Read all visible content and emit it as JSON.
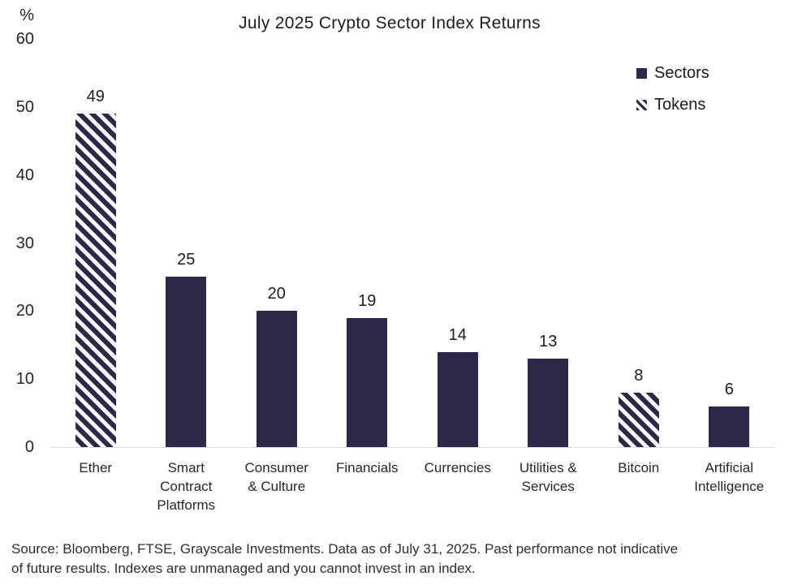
{
  "title": "July 2025 Crypto Sector Index Returns",
  "y_axis": {
    "unit_label": "%",
    "ticks": [
      0,
      10,
      20,
      30,
      40,
      50,
      60
    ]
  },
  "legend": {
    "items": [
      {
        "label": "Sectors",
        "style": "solid"
      },
      {
        "label": "Tokens",
        "style": "hatched"
      }
    ]
  },
  "chart_data": {
    "type": "bar",
    "title": "July 2025 Crypto Sector Index Returns",
    "categories": [
      "Ether",
      "Smart\nContract\nPlatforms",
      "Consumer\n& Culture",
      "Financials",
      "Currencies",
      "Utilities &\nServices",
      "Bitcoin",
      "Artificial\nIntelligence"
    ],
    "values": [
      49,
      25,
      20,
      19,
      14,
      13,
      8,
      6
    ],
    "data_labels": [
      "49",
      "25",
      "20",
      "19",
      "14",
      "13",
      "8",
      "6"
    ],
    "bar_styles": [
      "hatched",
      "solid",
      "solid",
      "solid",
      "solid",
      "solid",
      "hatched",
      "solid"
    ],
    "series_mapping": [
      {
        "category": "Ether",
        "series": "Tokens"
      },
      {
        "category": "Smart Contract Platforms",
        "series": "Sectors"
      },
      {
        "category": "Consumer & Culture",
        "series": "Sectors"
      },
      {
        "category": "Financials",
        "series": "Sectors"
      },
      {
        "category": "Currencies",
        "series": "Sectors"
      },
      {
        "category": "Utilities & Services",
        "series": "Sectors"
      },
      {
        "category": "Bitcoin",
        "series": "Tokens"
      },
      {
        "category": "Artificial Intelligence",
        "series": "Sectors"
      }
    ],
    "ylabel": "%",
    "ylim": [
      0,
      60
    ],
    "grid": false,
    "legend_position": "top-right"
  },
  "colors": {
    "bar": "#2e2749",
    "axis_line": "#dcdcdc",
    "text": "#1d1d1d"
  },
  "source_note": "Source: Bloomberg, FTSE, Grayscale Investments. Data as of July 31, 2025. Past performance not indicative\nof future results. Indexes are unmanaged and you cannot invest in an index."
}
